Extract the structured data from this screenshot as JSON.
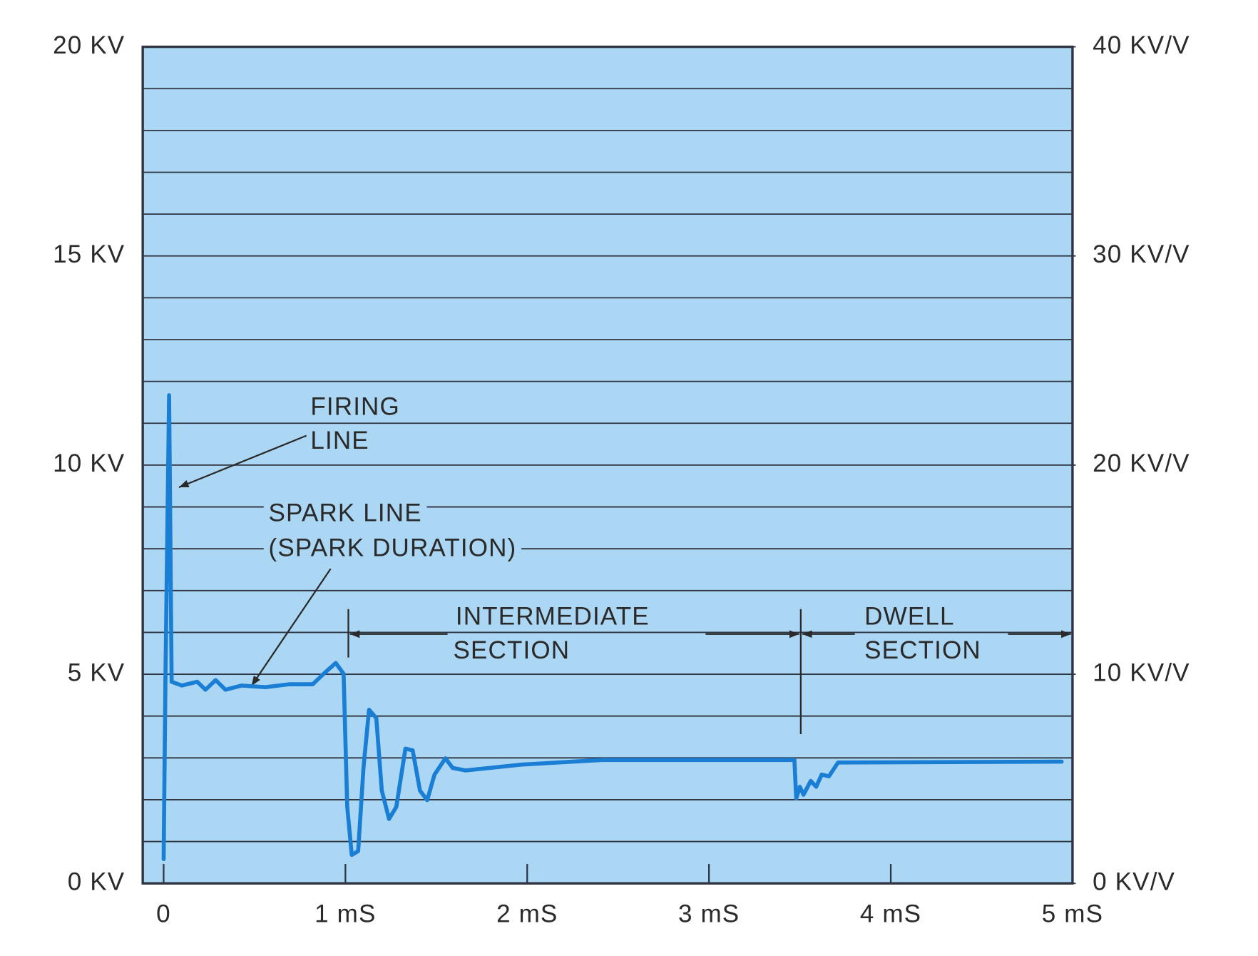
{
  "chart_data": {
    "type": "line",
    "x": [
      0,
      0.01,
      0.03,
      0.044,
      0.1,
      0.185,
      0.23,
      0.286,
      0.34,
      0.43,
      0.56,
      0.69,
      0.82,
      0.89,
      0.947,
      0.99,
      1.01,
      1.035,
      1.07,
      1.1,
      1.13,
      1.17,
      1.2,
      1.24,
      1.28,
      1.33,
      1.37,
      1.41,
      1.45,
      1.49,
      1.55,
      1.59,
      1.66,
      1.97,
      2.41,
      3.47,
      3.48,
      3.5,
      3.52,
      3.56,
      3.59,
      3.62,
      3.66,
      3.71,
      4.94
    ],
    "series": [
      {
        "color": "#1a7fd4",
        "values": [
          0.58,
          4.92,
          11.67,
          4.82,
          4.73,
          4.82,
          4.63,
          4.86,
          4.63,
          4.73,
          4.69,
          4.76,
          4.76,
          5.05,
          5.27,
          5.01,
          1.83,
          0.68,
          0.77,
          2.8,
          4.15,
          3.95,
          2.22,
          1.54,
          1.83,
          3.22,
          3.18,
          2.22,
          1.99,
          2.6,
          2.99,
          2.76,
          2.7,
          2.84,
          2.95,
          2.95,
          2.03,
          2.31,
          2.12,
          2.45,
          2.31,
          2.6,
          2.56,
          2.89,
          2.91
        ]
      }
    ],
    "xlim": [
      -0.115,
      5
    ],
    "xticks": [
      0,
      {
        "value": 1,
        "label": "1 mS"
      },
      {
        "value": 2,
        "label": "2 mS"
      },
      {
        "value": 3,
        "label": "3 mS"
      },
      {
        "value": 4,
        "label": "4 mS"
      },
      {
        "value": 5,
        "label": "5 mS"
      }
    ],
    "ylim": [
      0,
      20
    ],
    "yticks": [
      {
        "value": 0,
        "label": "0 KV"
      },
      {
        "value": 1,
        "label": null
      },
      {
        "value": 2,
        "label": null
      },
      {
        "value": 3,
        "label": null
      },
      {
        "value": 4,
        "label": null
      },
      {
        "value": 5,
        "label": "5 KV"
      },
      {
        "value": 6,
        "label": null
      },
      {
        "value": 7,
        "label": null
      },
      {
        "value": 8,
        "label": null
      },
      {
        "value": 9,
        "label": null
      },
      {
        "value": 10,
        "label": "10 KV"
      },
      {
        "value": 11,
        "label": null
      },
      {
        "value": 12,
        "label": null
      },
      {
        "value": 13,
        "label": null
      },
      {
        "value": 14,
        "label": null
      },
      {
        "value": 15,
        "label": "15 KV"
      },
      {
        "value": 16,
        "label": null
      },
      {
        "value": 17,
        "label": null
      },
      {
        "value": 18,
        "label": null
      },
      {
        "value": 19,
        "label": null
      },
      {
        "value": 20,
        "label": "20 KV"
      }
    ],
    "y2lim": [
      0,
      40
    ],
    "y2ticks": [
      {
        "value": 0,
        "label": "0 KV/V"
      },
      {
        "value": 10,
        "label": "10 KV/V"
      },
      {
        "value": 20,
        "label": "20 KV/V"
      },
      {
        "value": 30,
        "label": "30 KV/V"
      },
      {
        "value": 40,
        "label": "40 KV/V"
      }
    ],
    "grid": true,
    "annotations": [
      [
        "FIRING",
        "LINE"
      ],
      [
        "SPARK LINE",
        "(SPARK DURATION)"
      ],
      [
        "INTERMEDIATE",
        "SECTION"
      ],
      [
        "DWELL",
        "SECTION"
      ]
    ]
  }
}
